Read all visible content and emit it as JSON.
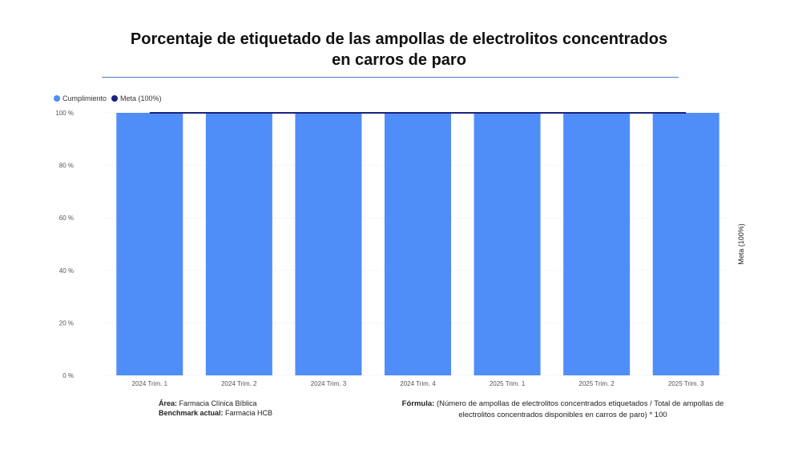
{
  "title": {
    "line1": "Porcentaje de etiquetado de las ampollas de electrolitos concentrados",
    "line2": "en carros de paro"
  },
  "legend": [
    {
      "label": "Cumplimiento",
      "color": "#4f8df9"
    },
    {
      "label": "Meta (100%)",
      "color": "#1a237e"
    }
  ],
  "chart_data": {
    "type": "bar",
    "categories": [
      "2024 Trim. 1",
      "2024 Trim. 2",
      "2024 Trim. 3",
      "2024 Trim. 4",
      "2025 Trim. 1",
      "2025 Trim. 2",
      "2025 Trim. 3"
    ],
    "series": [
      {
        "name": "Cumplimiento",
        "values": [
          100,
          100,
          100,
          100,
          100,
          100,
          100
        ],
        "color": "#4f8df9"
      },
      {
        "name": "Meta (100%)",
        "values": [
          100,
          100,
          100,
          100,
          100,
          100,
          100
        ],
        "color": "#1a237e",
        "kind": "line"
      }
    ],
    "ylim": [
      0,
      100
    ],
    "yticks": [
      0,
      20,
      40,
      60,
      80,
      100
    ],
    "ytick_labels": [
      "0 %",
      "20 %",
      "40 %",
      "60 %",
      "80 %",
      "100 %"
    ],
    "y2label": "Meta (100%)",
    "grid": true
  },
  "footer": {
    "area_label": "Área:",
    "area_value": "Farmacia Clínica Bíblica",
    "benchmark_label": "Benchmark actual:",
    "benchmark_value": "Farmacia HCB",
    "formula_label": "Fórmula:",
    "formula_text": "(Número de ampollas de electrolitos concentrados etiquetados / Total de ampollas de electrolitos concentrados disponibles en carros de paro) * 100"
  }
}
